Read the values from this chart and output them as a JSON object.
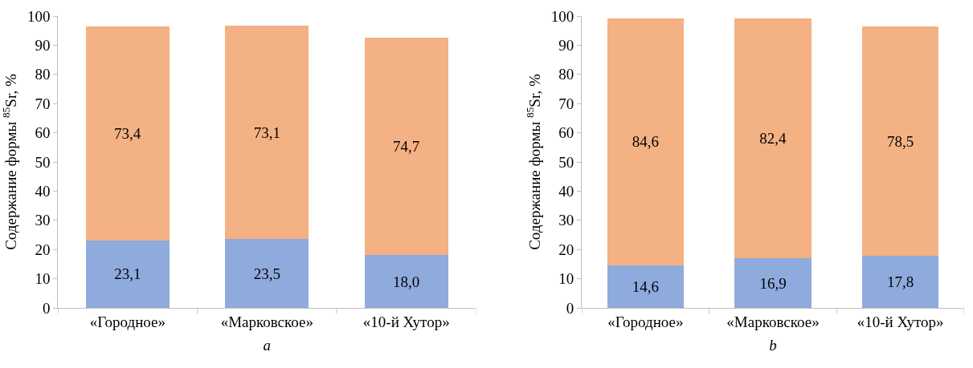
{
  "chart_data": [
    {
      "type": "bar",
      "stacked": true,
      "xlabel": "a",
      "ylabel": "Содержание формы $^{85}$Sr, %",
      "categories": [
        "«Городное»",
        "«Марковское»",
        "«10-й Хутор»"
      ],
      "series": [
        {
          "color": "#8faadc",
          "values": [
            23.1,
            23.5,
            18.0
          ],
          "value_labels": [
            "23,1",
            "23,5",
            "18,0"
          ]
        },
        {
          "color": "#f4b183",
          "values": [
            73.4,
            73.1,
            74.7
          ],
          "value_labels": [
            "73,4",
            "73,1",
            "74,7"
          ]
        }
      ],
      "ylim": [
        0,
        100
      ],
      "yticks": [
        0,
        10,
        20,
        30,
        40,
        50,
        60,
        70,
        80,
        90,
        100
      ]
    },
    {
      "type": "bar",
      "stacked": true,
      "xlabel": "b",
      "ylabel": "Содержание формы $^{85}$Sr, %",
      "categories": [
        "«Городное»",
        "«Марковское»",
        "«10-й Хутор»"
      ],
      "series": [
        {
          "color": "#8faadc",
          "values": [
            14.6,
            16.9,
            17.8
          ],
          "value_labels": [
            "14,6",
            "16,9",
            "17,8"
          ]
        },
        {
          "color": "#f4b183",
          "values": [
            84.6,
            82.4,
            78.5
          ],
          "value_labels": [
            "84,6",
            "82,4",
            "78,5"
          ]
        }
      ],
      "ylim": [
        0,
        100
      ],
      "yticks": [
        0,
        10,
        20,
        30,
        40,
        50,
        60,
        70,
        80,
        90,
        100
      ]
    }
  ]
}
